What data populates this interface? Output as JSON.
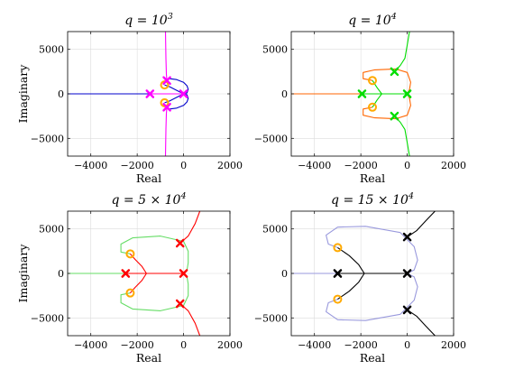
{
  "chart_data": [
    {
      "type": "line",
      "title": {
        "base": "q = 10",
        "sup": "3",
        "tail": ""
      },
      "xlabel": "Real",
      "ylabel": "Imaginary",
      "xlim": [
        -5000,
        2000
      ],
      "ylim": [
        -7000,
        7000
      ],
      "xticks": [
        -4000,
        -2000,
        0,
        2000
      ],
      "yticks": [
        5000,
        0,
        -5000
      ],
      "grid": true,
      "locus_colors": [
        "#0000cc",
        "#ff00ff"
      ],
      "locus": [
        {
          "color": "#0000cc",
          "x": [
            -5000,
            -1450,
            -1200,
            -1000
          ],
          "y": [
            0,
            0,
            0,
            0
          ]
        },
        {
          "color": "#0000cc",
          "x": [
            -820,
            -600,
            -300,
            0,
            150,
            200,
            150,
            0,
            -300,
            -600,
            -820
          ],
          "y": [
            1600,
            1700,
            1600,
            1300,
            900,
            500,
            100,
            0,
            -400,
            -800,
            -1000
          ]
        },
        {
          "color": "#0000cc",
          "x": [
            -820,
            -600,
            -300,
            0,
            150,
            200,
            150,
            0,
            -300,
            -600,
            -820
          ],
          "y": [
            -1600,
            -1700,
            -1600,
            -1300,
            -900,
            -500,
            -100,
            0,
            400,
            800,
            1000
          ]
        },
        {
          "color": "#ff00ff",
          "x": [
            -780,
            -760,
            -740,
            -720
          ],
          "y": [
            7000,
            4000,
            2200,
            1500
          ]
        },
        {
          "color": "#ff00ff",
          "x": [
            -780,
            -760,
            -740,
            -720
          ],
          "y": [
            -7000,
            -4000,
            -2200,
            -1500
          ]
        },
        {
          "color": "#ff00ff",
          "x": [
            -1450,
            -1100,
            -700,
            -400,
            0
          ],
          "y": [
            0,
            0,
            0,
            0,
            0
          ]
        }
      ],
      "poles": [
        {
          "x": -1450,
          "y": 0,
          "color": "#ff00ff"
        },
        {
          "x": -720,
          "y": 1500,
          "color": "#ff00ff"
        },
        {
          "x": -720,
          "y": -1500,
          "color": "#ff00ff"
        },
        {
          "x": 0,
          "y": 0,
          "color": "#ff00ff"
        }
      ],
      "zeros": [
        {
          "x": -820,
          "y": 1000
        },
        {
          "x": -820,
          "y": -1000
        }
      ]
    },
    {
      "type": "line",
      "title": {
        "base": "q = 10",
        "sup": "4",
        "tail": ""
      },
      "xlabel": "Real",
      "ylabel": "",
      "xlim": [
        -5000,
        2000
      ],
      "ylim": [
        -7000,
        7000
      ],
      "xticks": [
        -4000,
        -2000,
        0,
        2000
      ],
      "yticks": [
        5000,
        0,
        -5000
      ],
      "grid": true,
      "locus_colors": [
        "#ff6600",
        "#00dd00"
      ],
      "locus": [
        {
          "color": "#ff6600",
          "x": [
            -5000,
            -3000,
            -1950
          ],
          "y": [
            0,
            0,
            0
          ]
        },
        {
          "color": "#ff6600",
          "x": [
            -1500,
            -1900,
            -1900,
            -1400,
            -500,
            0,
            150,
            100,
            0
          ],
          "y": [
            1500,
            1700,
            2400,
            2700,
            2800,
            2400,
            1300,
            500,
            0
          ]
        },
        {
          "color": "#ff6600",
          "x": [
            -1500,
            -1900,
            -1900,
            -1400,
            -500,
            0,
            150,
            100,
            0
          ],
          "y": [
            -1500,
            -1700,
            -2400,
            -2700,
            -2800,
            -2400,
            -1300,
            -500,
            0
          ]
        },
        {
          "color": "#00dd00",
          "x": [
            -1950,
            -1600,
            -1300,
            -1100
          ],
          "y": [
            0,
            0,
            0,
            0
          ]
        },
        {
          "color": "#00dd00",
          "x": [
            -1100,
            -1300,
            -1500
          ],
          "y": [
            0,
            700,
            1500
          ]
        },
        {
          "color": "#00dd00",
          "x": [
            -1100,
            -1300,
            -1500
          ],
          "y": [
            0,
            -700,
            -1500
          ]
        },
        {
          "color": "#00dd00",
          "x": [
            -1100,
            -700,
            -300,
            0
          ],
          "y": [
            0,
            0,
            0,
            0
          ]
        },
        {
          "color": "#00dd00",
          "x": [
            -550,
            -300,
            -100,
            0,
            100
          ],
          "y": [
            2500,
            3200,
            4000,
            5500,
            7000
          ]
        },
        {
          "color": "#00dd00",
          "x": [
            -550,
            -300,
            -100,
            0,
            100
          ],
          "y": [
            -2500,
            -3200,
            -4000,
            -5500,
            -7000
          ]
        }
      ],
      "poles": [
        {
          "x": -1950,
          "y": 0,
          "color": "#00dd00"
        },
        {
          "x": -550,
          "y": 2500,
          "color": "#00dd00"
        },
        {
          "x": -550,
          "y": -2500,
          "color": "#00dd00"
        },
        {
          "x": 0,
          "y": 0,
          "color": "#00dd00"
        }
      ],
      "zeros": [
        {
          "x": -1500,
          "y": 1500
        },
        {
          "x": -1500,
          "y": -1500
        }
      ]
    },
    {
      "type": "line",
      "title": {
        "base": "q = 5 × 10",
        "sup": "4",
        "tail": ""
      },
      "xlabel": "Real",
      "ylabel": "Imaginary",
      "xlim": [
        -5000,
        2000
      ],
      "ylim": [
        -7000,
        7000
      ],
      "xticks": [
        -4000,
        -2000,
        0,
        2000
      ],
      "yticks": [
        5000,
        0,
        -5000
      ],
      "grid": true,
      "locus_colors": [
        "#66dd66",
        "#ff0000"
      ],
      "locus": [
        {
          "color": "#66dd66",
          "x": [
            -5000,
            -3500,
            -2500
          ],
          "y": [
            0,
            0,
            0
          ]
        },
        {
          "color": "#66dd66",
          "x": [
            -2300,
            -2700,
            -2700,
            -2200,
            -1000,
            0,
            200,
            200,
            150,
            0
          ],
          "y": [
            2200,
            2400,
            3300,
            4000,
            4200,
            3600,
            2500,
            1200,
            400,
            0
          ]
        },
        {
          "color": "#66dd66",
          "x": [
            -2300,
            -2700,
            -2700,
            -2200,
            -1000,
            0,
            200,
            200,
            150,
            0
          ],
          "y": [
            -2200,
            -2400,
            -3300,
            -4000,
            -4200,
            -3600,
            -2500,
            -1200,
            -400,
            0
          ]
        },
        {
          "color": "#ff0000",
          "x": [
            -2500,
            -2000,
            -1600
          ],
          "y": [
            0,
            0,
            0
          ]
        },
        {
          "color": "#ff0000",
          "x": [
            -1600,
            -1800,
            -2100,
            -2300
          ],
          "y": [
            0,
            800,
            1600,
            2200
          ]
        },
        {
          "color": "#ff0000",
          "x": [
            -1600,
            -1800,
            -2100,
            -2300
          ],
          "y": [
            0,
            -800,
            -1600,
            -2200
          ]
        },
        {
          "color": "#ff0000",
          "x": [
            -1600,
            -800,
            0
          ],
          "y": [
            0,
            0,
            0
          ]
        },
        {
          "color": "#ff0000",
          "x": [
            -150,
            200,
            500,
            700
          ],
          "y": [
            3400,
            4200,
            5600,
            7000
          ]
        },
        {
          "color": "#ff0000",
          "x": [
            -150,
            200,
            500,
            700
          ],
          "y": [
            -3400,
            -4200,
            -5600,
            -7000
          ]
        }
      ],
      "poles": [
        {
          "x": -2500,
          "y": 0,
          "color": "#ff0000"
        },
        {
          "x": -150,
          "y": 3400,
          "color": "#ff0000"
        },
        {
          "x": -150,
          "y": -3400,
          "color": "#ff0000"
        },
        {
          "x": 0,
          "y": 0,
          "color": "#ff0000"
        }
      ],
      "zeros": [
        {
          "x": -2300,
          "y": 2200
        },
        {
          "x": -2300,
          "y": -2200
        }
      ]
    },
    {
      "type": "line",
      "title": {
        "base": "q = 15 × 10",
        "sup": "4",
        "tail": ""
      },
      "xlabel": "Real",
      "ylabel": "",
      "xlim": [
        -5000,
        2000
      ],
      "ylim": [
        -7000,
        7000
      ],
      "xticks": [
        -4000,
        -2000,
        0,
        2000
      ],
      "yticks": [
        5000,
        0,
        -5000
      ],
      "grid": true,
      "locus_colors": [
        "#9999dd",
        "#000000"
      ],
      "locus": [
        {
          "color": "#9999dd",
          "x": [
            -5000,
            -4000,
            -3000
          ],
          "y": [
            0,
            0,
            0
          ]
        },
        {
          "color": "#9999dd",
          "x": [
            -3000,
            -3400,
            -3500,
            -3000,
            -1800,
            -300,
            300,
            450,
            300,
            0
          ],
          "y": [
            2900,
            3300,
            4300,
            5200,
            5300,
            4600,
            3000,
            1500,
            400,
            0
          ]
        },
        {
          "color": "#9999dd",
          "x": [
            -3000,
            -3400,
            -3500,
            -3000,
            -1800,
            -300,
            300,
            450,
            300,
            0
          ],
          "y": [
            -2900,
            -3300,
            -4300,
            -5200,
            -5300,
            -4600,
            -3000,
            -1500,
            -400,
            0
          ]
        },
        {
          "color": "#000000",
          "x": [
            -3000,
            -2400,
            -1850
          ],
          "y": [
            0,
            0,
            0
          ]
        },
        {
          "color": "#000000",
          "x": [
            -1850,
            -2100,
            -2500,
            -3000
          ],
          "y": [
            0,
            1000,
            2000,
            2900
          ]
        },
        {
          "color": "#000000",
          "x": [
            -1850,
            -2100,
            -2500,
            -3000
          ],
          "y": [
            0,
            -1000,
            -2000,
            -2900
          ]
        },
        {
          "color": "#000000",
          "x": [
            -1850,
            -900,
            0
          ],
          "y": [
            0,
            0,
            0
          ]
        },
        {
          "color": "#000000",
          "x": [
            0,
            400,
            800,
            1200
          ],
          "y": [
            4100,
            4800,
            5900,
            7000
          ]
        },
        {
          "color": "#000000",
          "x": [
            0,
            400,
            800,
            1200
          ],
          "y": [
            -4100,
            -4800,
            -5900,
            -7000
          ]
        }
      ],
      "poles": [
        {
          "x": -3000,
          "y": 0,
          "color": "#000000"
        },
        {
          "x": 0,
          "y": 4100,
          "color": "#000000"
        },
        {
          "x": 0,
          "y": -4100,
          "color": "#000000"
        },
        {
          "x": 0,
          "y": 0,
          "color": "#000000"
        }
      ],
      "zeros": [
        {
          "x": -3000,
          "y": 2900
        },
        {
          "x": -3000,
          "y": -2900
        }
      ]
    }
  ],
  "zero_marker_color": "#ffaa00"
}
